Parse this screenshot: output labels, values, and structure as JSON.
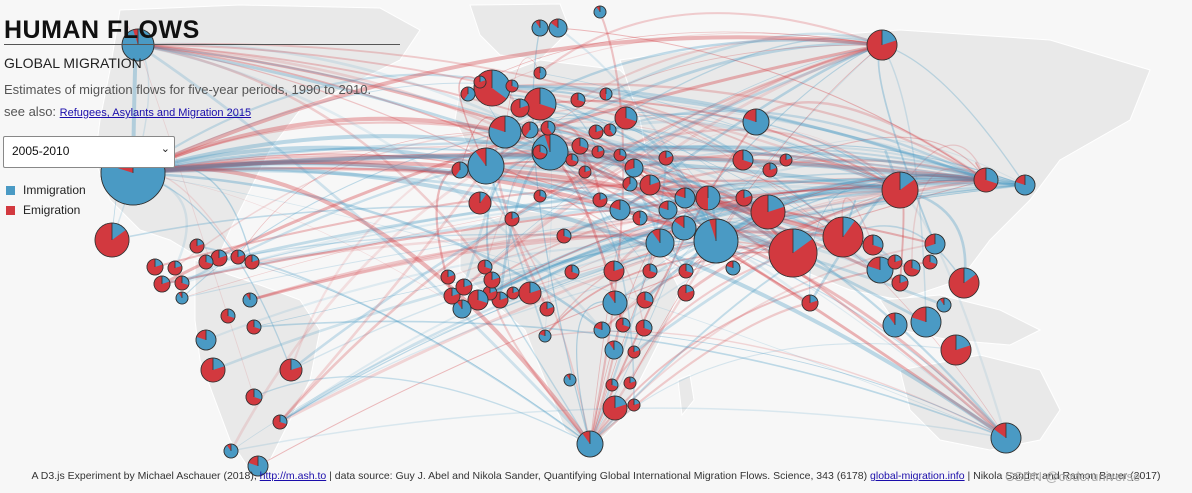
{
  "header": {
    "title": "HUMAN FLOWS",
    "subtitle": "GLOBAL MIGRATION",
    "description": "Estimates of migration flows for five-year periods, 1990 to 2010.",
    "see_also_prefix": "see also:",
    "see_also_link": "Refugees, Asylants and Migration 2015"
  },
  "period_select": {
    "value": "2005-2010"
  },
  "legend": [
    {
      "label": "Immigration",
      "color": "#4a9ac4"
    },
    {
      "label": "Emigration",
      "color": "#d2393f"
    }
  ],
  "colors": {
    "immigration": "#4a9ac4",
    "emigration": "#d2393f",
    "land": "#e9e9e9"
  },
  "footer": {
    "credit": "A D3.js Experiment by Michael Aschauer (2018),",
    "credit_link": "http://m.ash.to",
    "source": "| data source: Guy J. Abel and Nikola Sander, Quantifying Global International Migration Flows. Science, 343 (6178)",
    "source_link": "global-migration.info",
    "source_tail": "| Nikola Sander and Ramon Bauer (2017)"
  },
  "watermark": "CSDN @coderuniverse"
}
